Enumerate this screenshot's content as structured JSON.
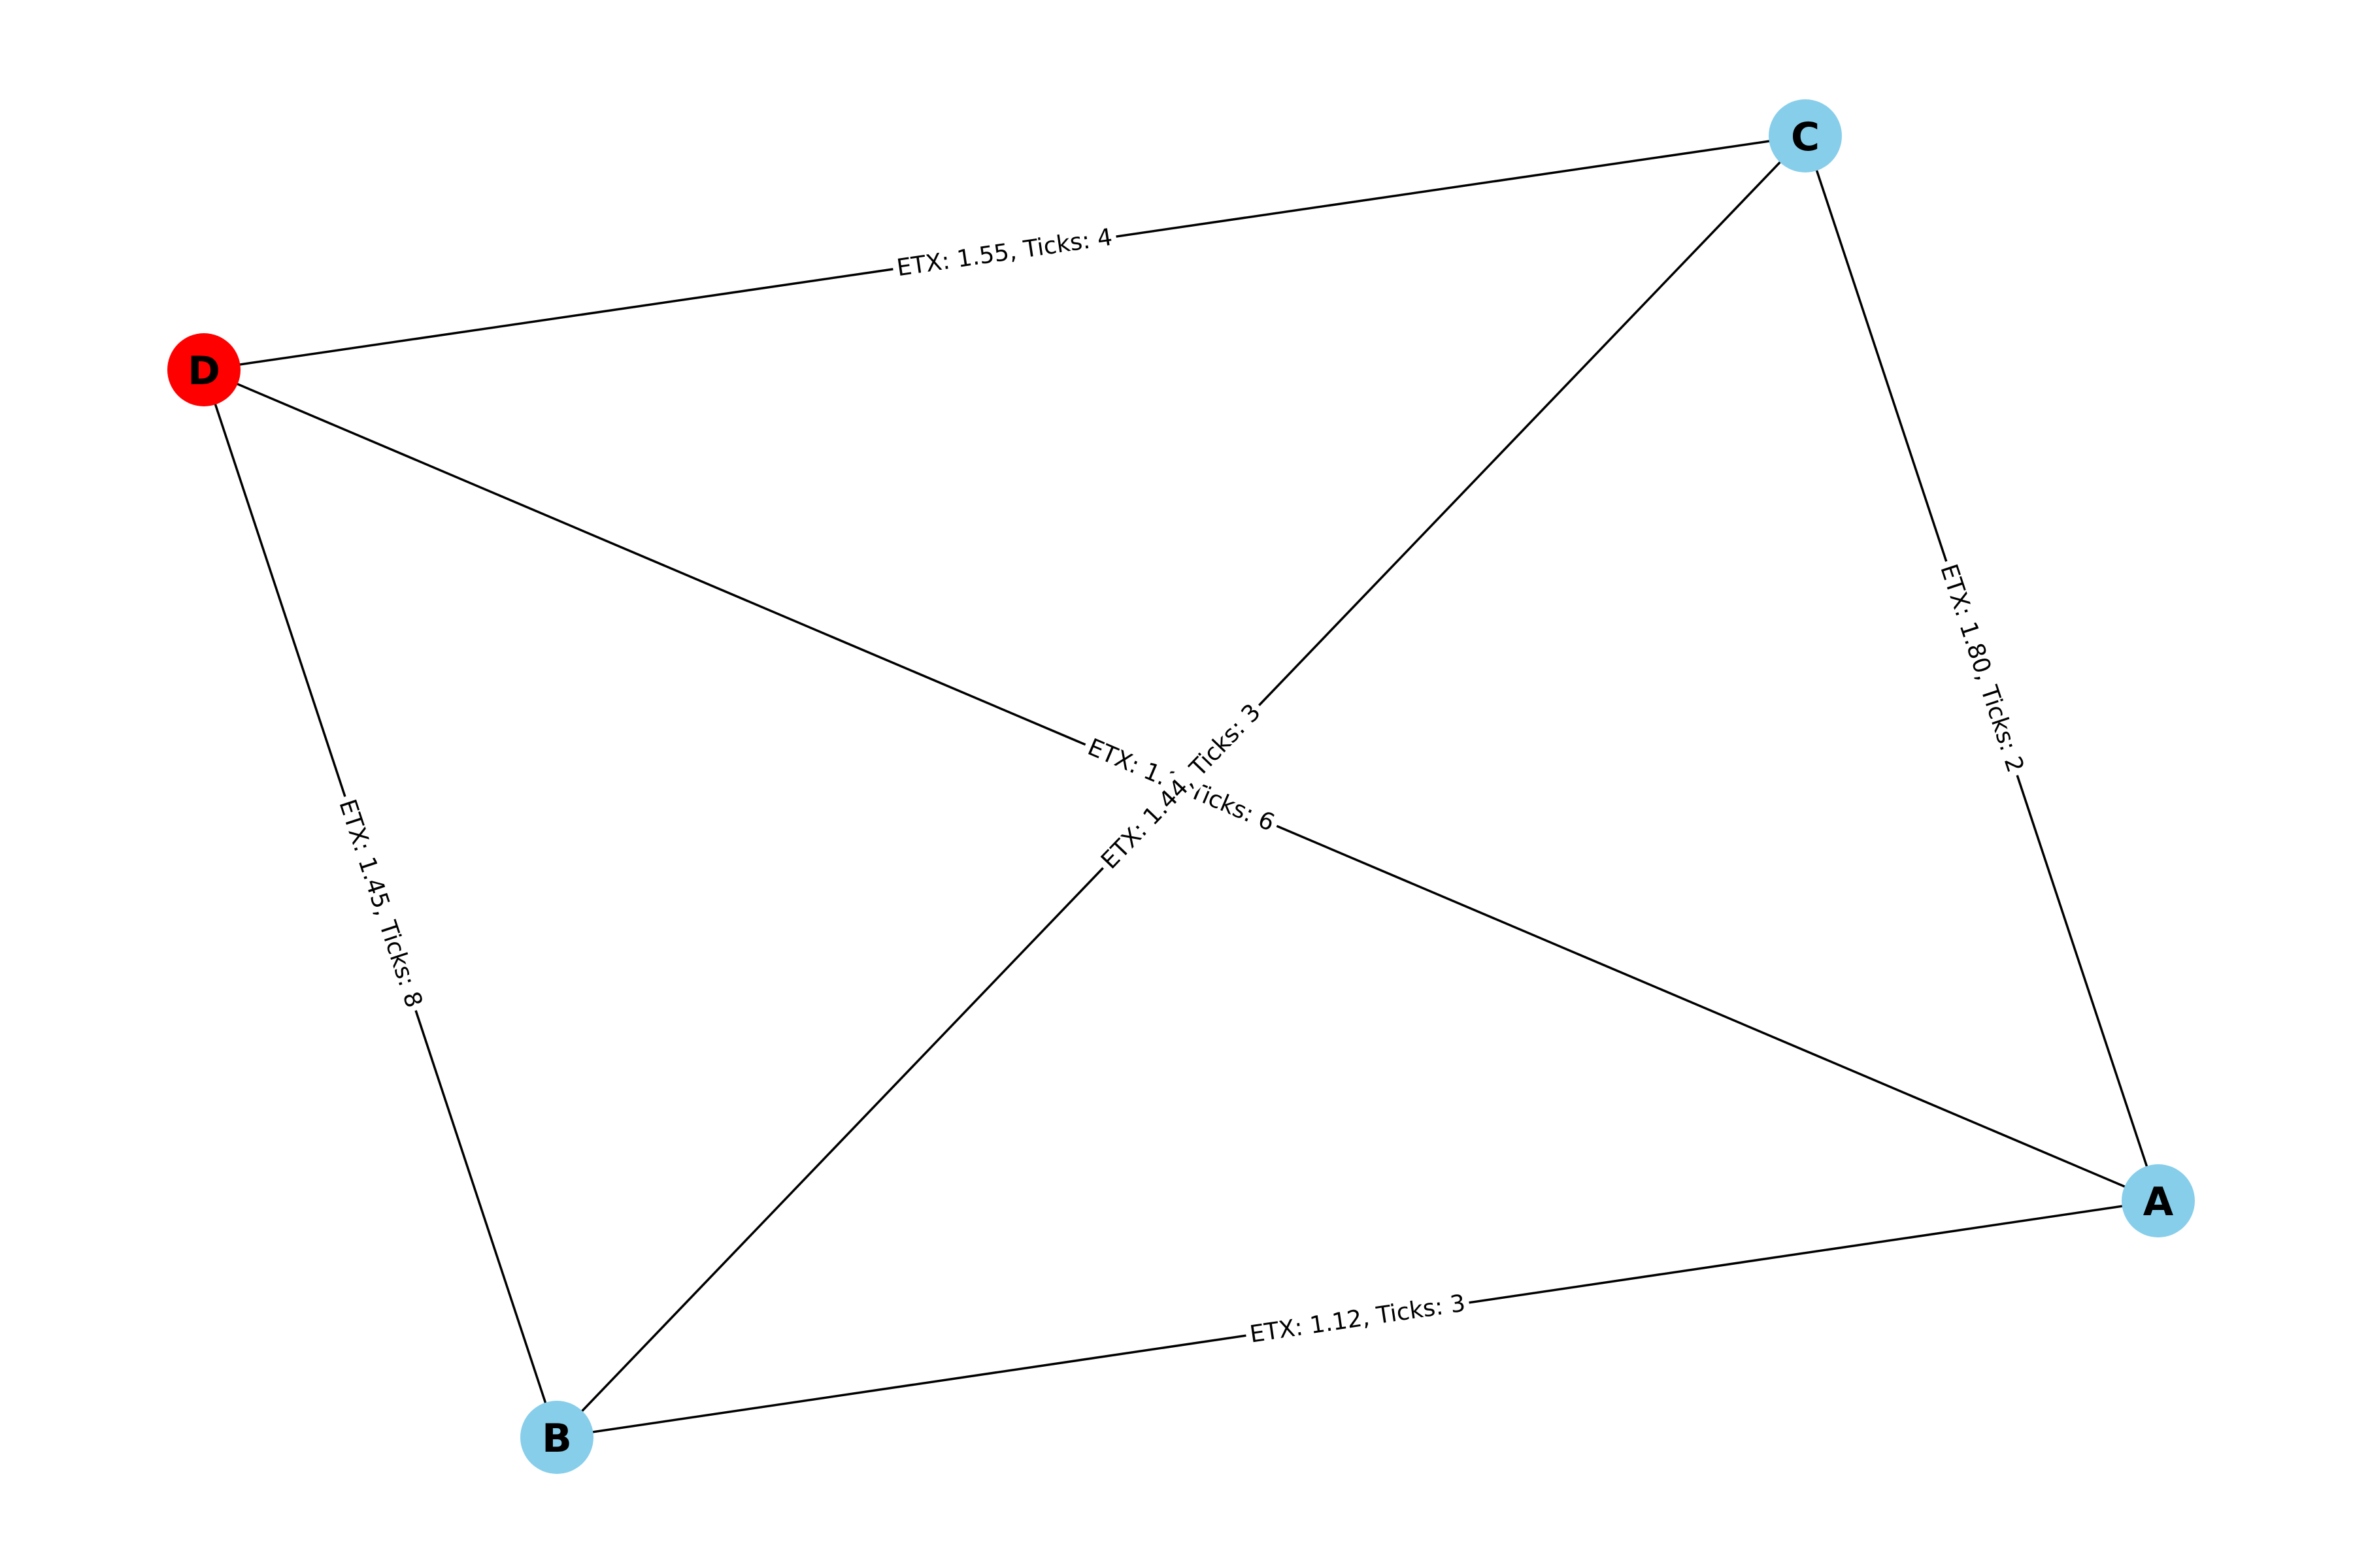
{
  "graph": {
    "nodes": [
      {
        "id": "A",
        "label": "A",
        "color": "#87ceeb"
      },
      {
        "id": "B",
        "label": "B",
        "color": "#87ceeb"
      },
      {
        "id": "C",
        "label": "C",
        "color": "#87ceeb"
      },
      {
        "id": "D",
        "label": "D",
        "color": "#ff0000"
      }
    ],
    "edges": [
      {
        "source": "D",
        "target": "C",
        "label": "ETX: 1.55, Ticks: 4"
      },
      {
        "source": "C",
        "target": "A",
        "label": "ETX: 1.80, Ticks: 2"
      },
      {
        "source": "D",
        "target": "B",
        "label": "ETX: 1.45, Ticks: 8"
      },
      {
        "source": "B",
        "target": "A",
        "label": "ETX: 1.12, Ticks: 3"
      },
      {
        "source": "D",
        "target": "A",
        "label": "ETX: 1.?, Ticks: 6"
      },
      {
        "source": "B",
        "target": "C",
        "label": "ETX: 1.44, Ticks: 3"
      }
    ]
  }
}
